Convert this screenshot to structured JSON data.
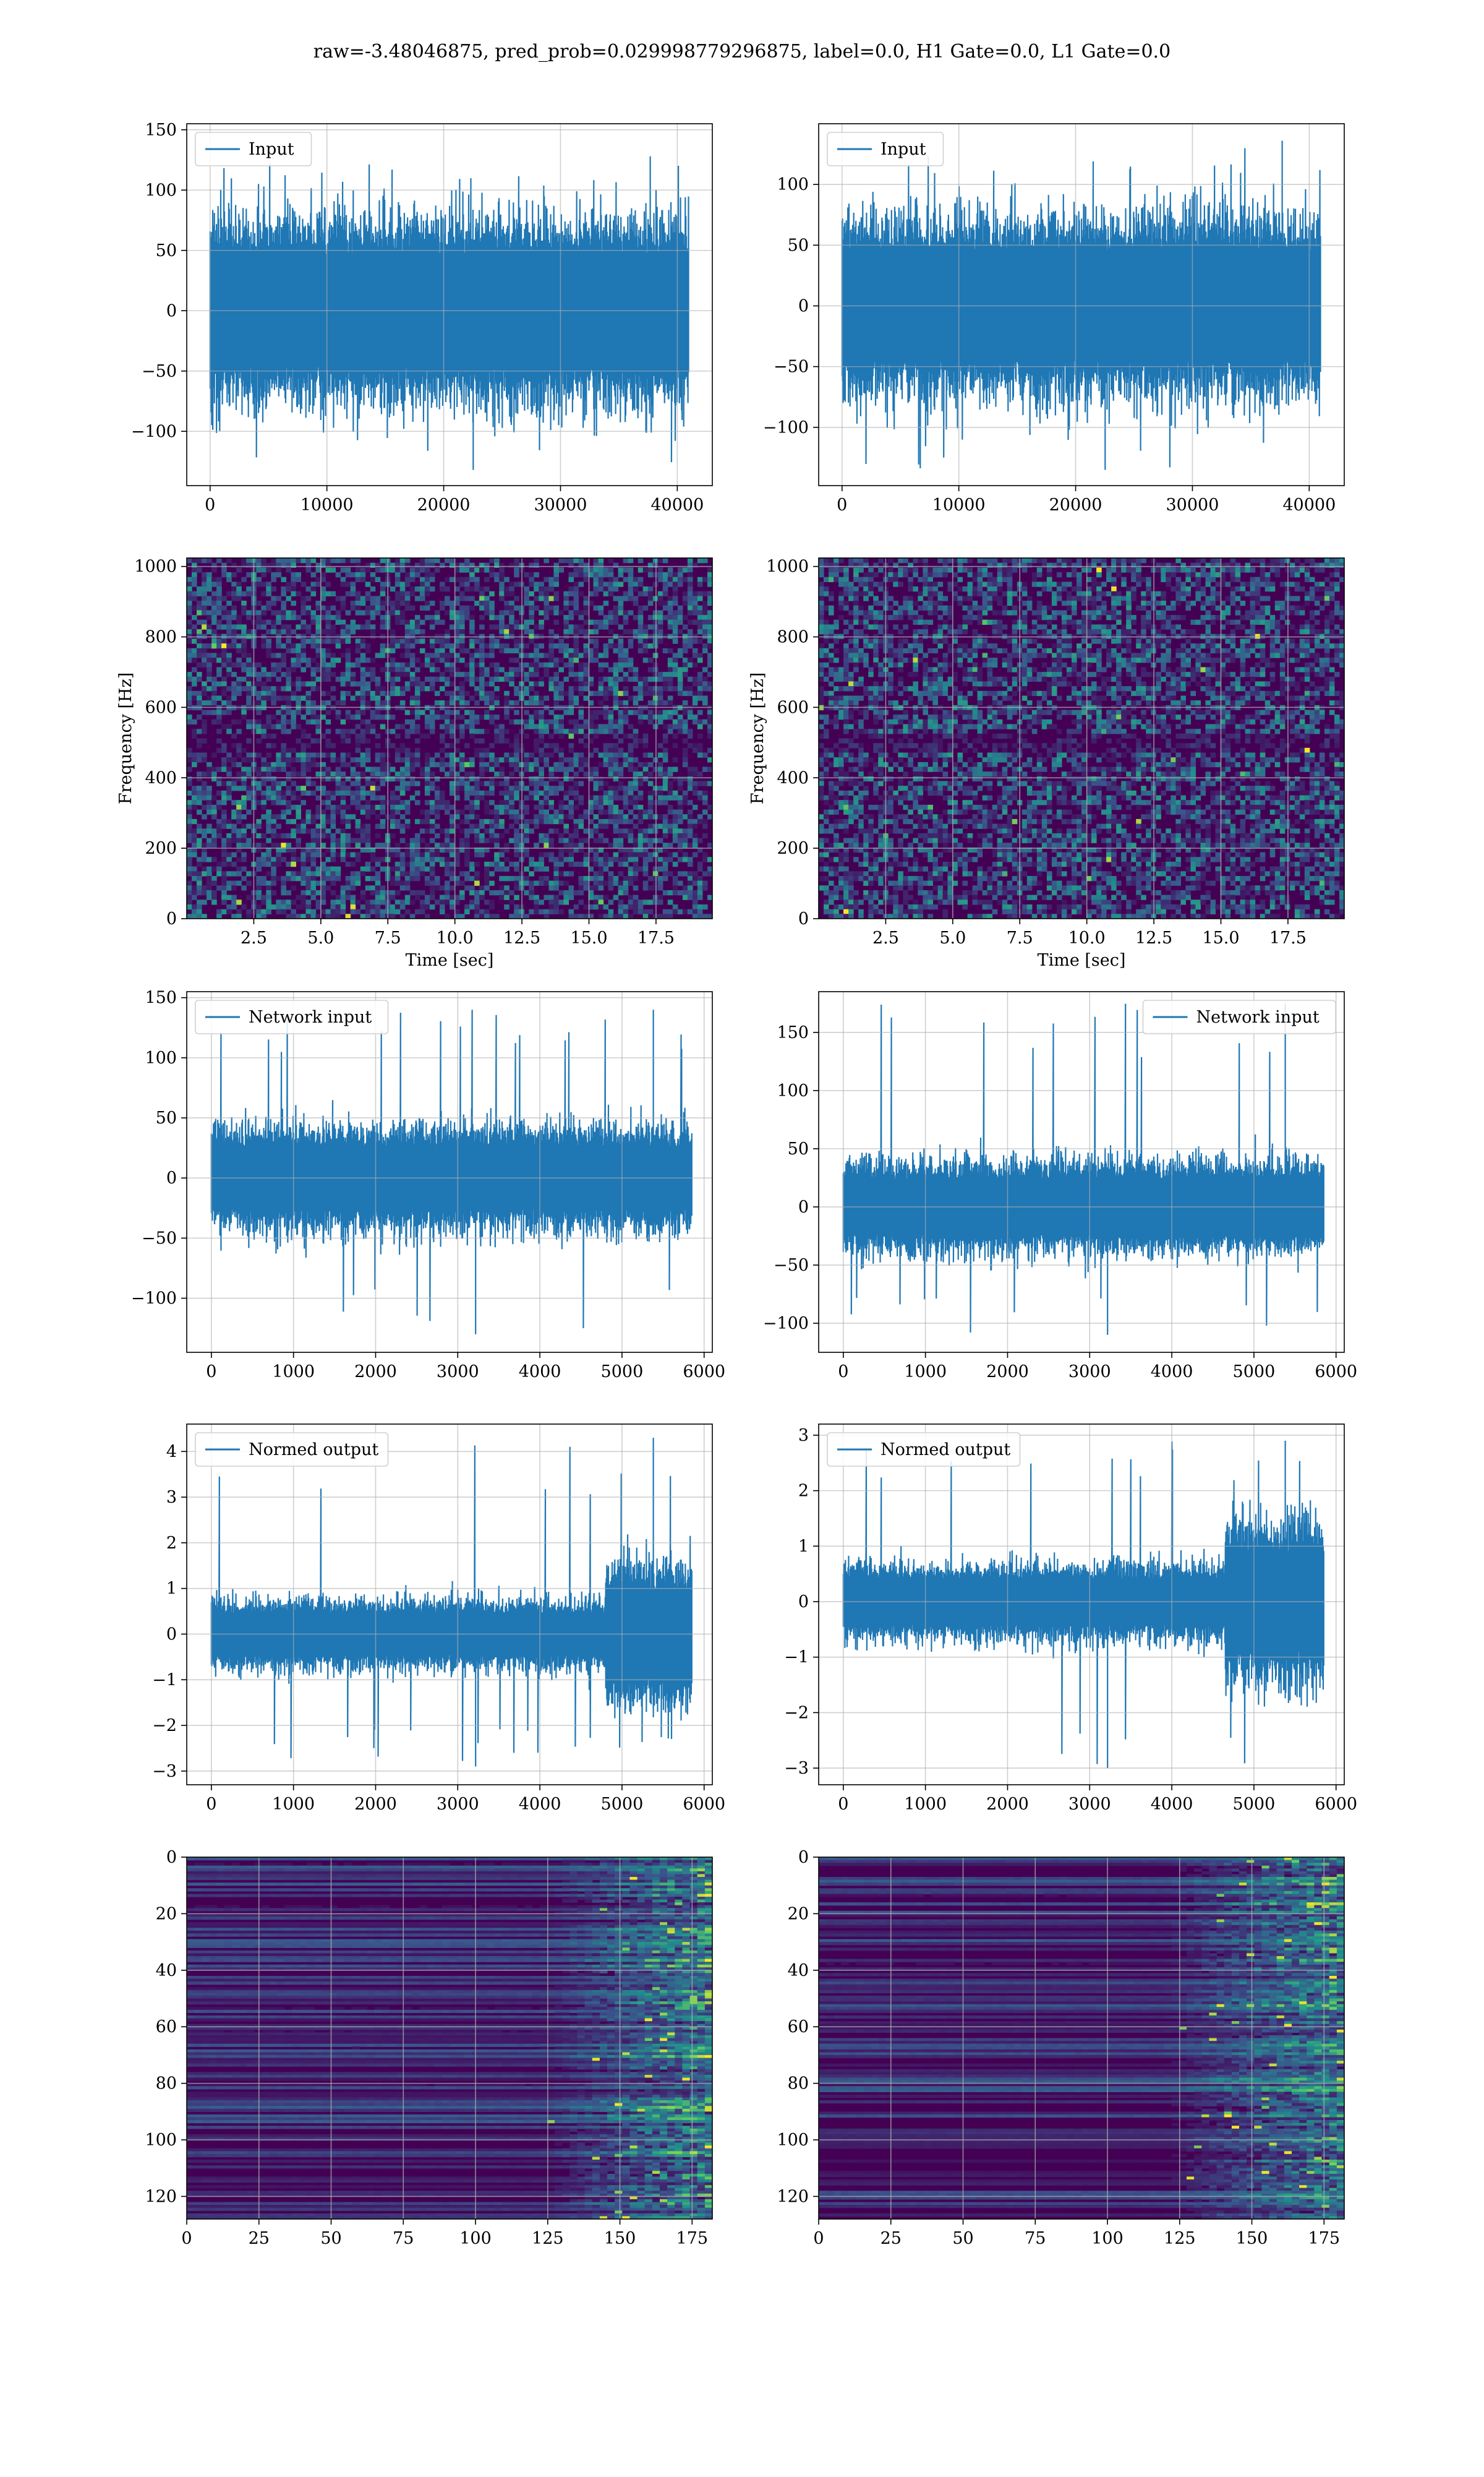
{
  "title": "raw=-3.48046875, pred_prob=0.029998779296875, label=0.0, H1 Gate=0.0, L1 Gate=0.0",
  "colors": {
    "series": "#1f77b4",
    "grid": "#b0b0b0",
    "colormap": [
      "#440154",
      "#3b528b",
      "#21918c",
      "#5ec962",
      "#fde725"
    ]
  },
  "chart_data": [
    {
      "id": "h1-input",
      "type": "line",
      "legend": "Input",
      "legend_loc": "upper left",
      "xlim": [
        -2000,
        43000
      ],
      "ylim": [
        -145,
        155
      ],
      "xticks": [
        0,
        10000,
        20000,
        30000,
        40000
      ],
      "yticks": [
        -100,
        -50,
        0,
        50,
        100,
        150
      ],
      "xticklabels": [
        "0",
        "10000",
        "20000",
        "30000",
        "40000"
      ],
      "yticklabels": [
        "−100",
        "−50",
        "0",
        "50",
        "100",
        "150"
      ],
      "x_range": [
        0,
        40960
      ],
      "core_amplitude": 62,
      "peak_max": 128,
      "peak_min": -132,
      "grid": true,
      "xlabel": "",
      "ylabel": ""
    },
    {
      "id": "l1-input",
      "type": "line",
      "legend": "Input",
      "legend_loc": "upper left",
      "xlim": [
        -2000,
        43000
      ],
      "ylim": [
        -148,
        150
      ],
      "xticks": [
        0,
        10000,
        20000,
        30000,
        40000
      ],
      "yticks": [
        -100,
        -50,
        0,
        50,
        100
      ],
      "xticklabels": [
        "0",
        "10000",
        "20000",
        "30000",
        "40000"
      ],
      "yticklabels": [
        "−100",
        "−50",
        "0",
        "50",
        "100"
      ],
      "x_range": [
        0,
        40960
      ],
      "core_amplitude": 60,
      "peak_max": 136,
      "peak_min": -135,
      "grid": true,
      "xlabel": "",
      "ylabel": ""
    },
    {
      "id": "h1-spectrogram",
      "type": "heatmap",
      "xlim": [
        0,
        19.6
      ],
      "ylim": [
        0,
        1024
      ],
      "xticks": [
        2.5,
        5.0,
        7.5,
        10.0,
        12.5,
        15.0,
        17.5
      ],
      "yticks": [
        0,
        200,
        400,
        600,
        800,
        1000
      ],
      "xticklabels": [
        "2.5",
        "5.0",
        "7.5",
        "10.0",
        "12.5",
        "15.0",
        "17.5"
      ],
      "yticklabels": [
        "0",
        "200",
        "400",
        "600",
        "800",
        "1000"
      ],
      "xlabel": "Time [sec]",
      "ylabel": "Frequency [Hz]",
      "grid": true
    },
    {
      "id": "l1-spectrogram",
      "type": "heatmap",
      "xlim": [
        0,
        19.6
      ],
      "ylim": [
        0,
        1024
      ],
      "xticks": [
        2.5,
        5.0,
        7.5,
        10.0,
        12.5,
        15.0,
        17.5
      ],
      "yticks": [
        0,
        200,
        400,
        600,
        800,
        1000
      ],
      "xticklabels": [
        "2.5",
        "5.0",
        "7.5",
        "10.0",
        "12.5",
        "15.0",
        "17.5"
      ],
      "yticklabels": [
        "0",
        "200",
        "400",
        "600",
        "800",
        "1000"
      ],
      "xlabel": "Time [sec]",
      "ylabel": "Frequency [Hz]",
      "grid": true
    },
    {
      "id": "h1-network-input",
      "type": "line",
      "legend": "Network input",
      "legend_loc": "upper left",
      "xlim": [
        -300,
        6100
      ],
      "ylim": [
        -145,
        155
      ],
      "xticks": [
        0,
        1000,
        2000,
        3000,
        4000,
        5000,
        6000
      ],
      "yticks": [
        -100,
        -50,
        0,
        50,
        100,
        150
      ],
      "xticklabels": [
        "0",
        "1000",
        "2000",
        "3000",
        "4000",
        "5000",
        "6000"
      ],
      "yticklabels": [
        "−100",
        "−50",
        "0",
        "50",
        "100",
        "150"
      ],
      "x_range": [
        0,
        5850
      ],
      "core_amplitude": 35,
      "peak_max": 140,
      "peak_min": -130,
      "grid": true,
      "xlabel": "",
      "ylabel": ""
    },
    {
      "id": "l1-network-input",
      "type": "line",
      "legend": "Network input",
      "legend_loc": "upper right",
      "xlim": [
        -300,
        6100
      ],
      "ylim": [
        -125,
        185
      ],
      "xticks": [
        0,
        1000,
        2000,
        3000,
        4000,
        5000,
        6000
      ],
      "yticks": [
        -100,
        -50,
        0,
        50,
        100,
        150
      ],
      "xticklabels": [
        "0",
        "1000",
        "2000",
        "3000",
        "4000",
        "5000",
        "6000"
      ],
      "yticklabels": [
        "−100",
        "−50",
        "0",
        "50",
        "100",
        "150"
      ],
      "x_range": [
        0,
        5850
      ],
      "core_amplitude": 32,
      "peak_max": 175,
      "peak_min": -110,
      "grid": true,
      "xlabel": "",
      "ylabel": ""
    },
    {
      "id": "h1-normed-output",
      "type": "line",
      "legend": "Normed output",
      "legend_loc": "upper left",
      "xlim": [
        -300,
        6100
      ],
      "ylim": [
        -3.3,
        4.6
      ],
      "xticks": [
        0,
        1000,
        2000,
        3000,
        4000,
        5000,
        6000
      ],
      "yticks": [
        -3,
        -2,
        -1,
        0,
        1,
        2,
        3,
        4
      ],
      "xticklabels": [
        "0",
        "1000",
        "2000",
        "3000",
        "4000",
        "5000",
        "6000"
      ],
      "yticklabels": [
        "−3",
        "−2",
        "−1",
        "0",
        "1",
        "2",
        "3",
        "4"
      ],
      "x_range": [
        0,
        5850
      ],
      "core_amplitude": 0.6,
      "burst_start": 4800,
      "burst_amplitude": 1.3,
      "peak_max": 4.3,
      "peak_min": -2.9,
      "grid": true,
      "xlabel": "",
      "ylabel": ""
    },
    {
      "id": "l1-normed-output",
      "type": "line",
      "legend": "Normed output",
      "legend_loc": "upper left",
      "xlim": [
        -300,
        6100
      ],
      "ylim": [
        -3.3,
        3.2
      ],
      "xticks": [
        0,
        1000,
        2000,
        3000,
        4000,
        5000,
        6000
      ],
      "yticks": [
        -3,
        -2,
        -1,
        0,
        1,
        2,
        3
      ],
      "xticklabels": [
        "0",
        "1000",
        "2000",
        "3000",
        "4000",
        "5000",
        "6000"
      ],
      "yticklabels": [
        "−3",
        "−2",
        "−1",
        "0",
        "1",
        "2",
        "3"
      ],
      "x_range": [
        0,
        5850
      ],
      "core_amplitude": 0.55,
      "burst_start": 4650,
      "burst_amplitude": 1.2,
      "peak_max": 2.9,
      "peak_min": -3.0,
      "grid": true,
      "xlabel": "",
      "ylabel": ""
    },
    {
      "id": "h1-feature-map",
      "type": "heatmap",
      "xlim": [
        0,
        182
      ],
      "ylim": [
        128,
        0
      ],
      "xticks": [
        0,
        25,
        50,
        75,
        100,
        125,
        150,
        175
      ],
      "yticks": [
        0,
        20,
        40,
        60,
        80,
        100,
        120
      ],
      "xticklabels": [
        "0",
        "25",
        "50",
        "75",
        "100",
        "125",
        "150",
        "175"
      ],
      "yticklabels": [
        "0",
        "20",
        "40",
        "60",
        "80",
        "100",
        "120"
      ],
      "active_from": 125,
      "grid": true,
      "xlabel": "",
      "ylabel": ""
    },
    {
      "id": "l1-feature-map",
      "type": "heatmap",
      "xlim": [
        0,
        182
      ],
      "ylim": [
        128,
        0
      ],
      "xticks": [
        0,
        25,
        50,
        75,
        100,
        125,
        150,
        175
      ],
      "yticks": [
        0,
        20,
        40,
        60,
        80,
        100,
        120
      ],
      "xticklabels": [
        "0",
        "25",
        "50",
        "75",
        "100",
        "125",
        "150",
        "175"
      ],
      "yticklabels": [
        "0",
        "20",
        "40",
        "60",
        "80",
        "100",
        "120"
      ],
      "active_from": 120,
      "grid": true,
      "xlabel": "",
      "ylabel": ""
    }
  ]
}
